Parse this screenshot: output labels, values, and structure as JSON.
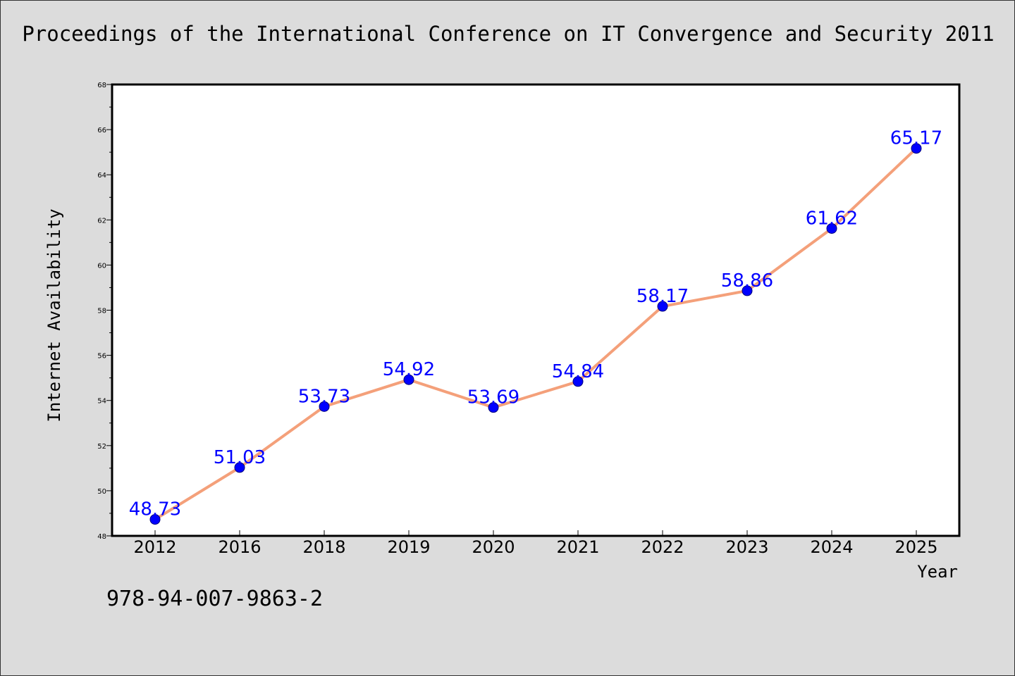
{
  "title": "Proceedings of the International Conference on IT Convergence and Security 2011",
  "footer_text": "978-94-007-9863-2",
  "colors": {
    "background": "#dcdcdc",
    "plot_background": "#ffffff",
    "line": "#f4a07a",
    "marker": "#0000ff",
    "data_label": "#0000ff"
  },
  "chart_data": {
    "type": "line",
    "xlabel": "Year",
    "ylabel": "Internet Availability",
    "categories": [
      "2012",
      "2016",
      "2018",
      "2019",
      "2020",
      "2021",
      "2022",
      "2023",
      "2024",
      "2025"
    ],
    "values": [
      48.73,
      51.03,
      53.73,
      54.92,
      53.69,
      54.84,
      58.17,
      58.86,
      61.62,
      65.17
    ],
    "value_labels": [
      "48.73",
      "51.03",
      "53.73",
      "54.92",
      "53.69",
      "54.84",
      "58.17",
      "58.86",
      "61.62",
      "65.17"
    ],
    "ylim": [
      48,
      68
    ],
    "yticks": [
      "48",
      "50",
      "52",
      "54",
      "56",
      "58",
      "60",
      "62",
      "64",
      "66",
      "68"
    ],
    "grid": false,
    "legend": "none"
  }
}
